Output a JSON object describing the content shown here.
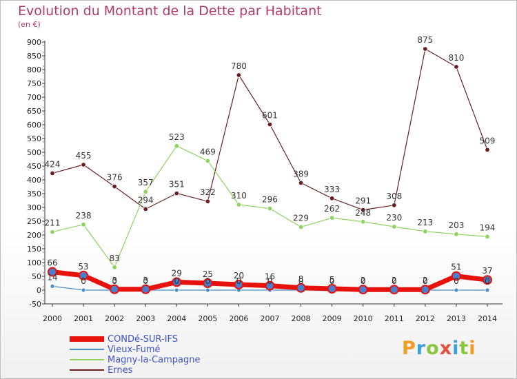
{
  "title": "Evolution du Montant de la Dette par Habitant",
  "unit": "(en €)",
  "brand": {
    "letters": [
      "P",
      "r",
      "o",
      "x",
      "i",
      "t",
      "i"
    ],
    "colors": [
      "#f59a23",
      "#3aa0d8",
      "#8dc63f",
      "#e94e3c",
      "#3aa0d8",
      "#8dc63f",
      "#f59a23"
    ]
  },
  "chart_data": {
    "type": "line",
    "title": "Evolution du Montant de la Dette par Habitant",
    "ylabel": "(en €)",
    "xlabel": "",
    "x": [
      "2000",
      "2001",
      "2002",
      "2003",
      "2004",
      "2005",
      "2006",
      "2007",
      "2008",
      "2009",
      "2010",
      "2011",
      "2012",
      "2013",
      "2014"
    ],
    "ylim": [
      -50,
      900
    ],
    "yticks": [
      -50,
      0,
      50,
      100,
      150,
      200,
      250,
      300,
      350,
      400,
      450,
      500,
      550,
      600,
      650,
      700,
      750,
      800,
      850,
      900
    ],
    "grid": false,
    "legend_position": "bottom-left",
    "series": [
      {
        "name": "CONDé-SUR-IFS",
        "color": "#e8120c",
        "values": [
          66,
          53,
          3,
          3,
          29,
          25,
          20,
          16,
          8,
          5,
          2,
          2,
          2,
          51,
          37
        ]
      },
      {
        "name": "Vieux-Fumé",
        "color": "#4a8ec9",
        "values": [
          14,
          0,
          0,
          0,
          0,
          0,
          0,
          0,
          0,
          0,
          0,
          0,
          0,
          0,
          0
        ]
      },
      {
        "name": "Magny-la-Campagne",
        "color": "#8dd35f",
        "values": [
          211,
          238,
          83,
          357,
          523,
          469,
          310,
          296,
          229,
          262,
          248,
          230,
          213,
          203,
          194
        ]
      },
      {
        "name": "Ernes",
        "color": "#6b1f22",
        "values": [
          424,
          455,
          376,
          294,
          351,
          322,
          780,
          601,
          389,
          333,
          291,
          308,
          875,
          810,
          509
        ]
      }
    ],
    "data_labels": {
      "CONDé-SUR-IFS": [
        "66",
        "53",
        "3",
        "3",
        "29",
        "25",
        "20",
        "16",
        "8",
        "5",
        "2",
        "2",
        "2",
        "51",
        "37"
      ],
      "Vieux-Fumé": [
        "14",
        "0",
        "0",
        "0",
        "0",
        "0",
        "0",
        "0",
        "0",
        "0",
        "0",
        "0",
        "0",
        "0",
        "0"
      ],
      "Magny-la-Campagne": [
        "211",
        "238",
        "83",
        "357",
        "523",
        "469",
        "310",
        "296",
        "229",
        "262",
        "248",
        "230",
        "213",
        "203",
        "194"
      ],
      "Ernes": [
        "424",
        "455",
        "376",
        "294",
        "351",
        "322",
        "780",
        "601",
        "389",
        "333",
        "291",
        "308",
        "875",
        "810",
        "509"
      ]
    }
  }
}
